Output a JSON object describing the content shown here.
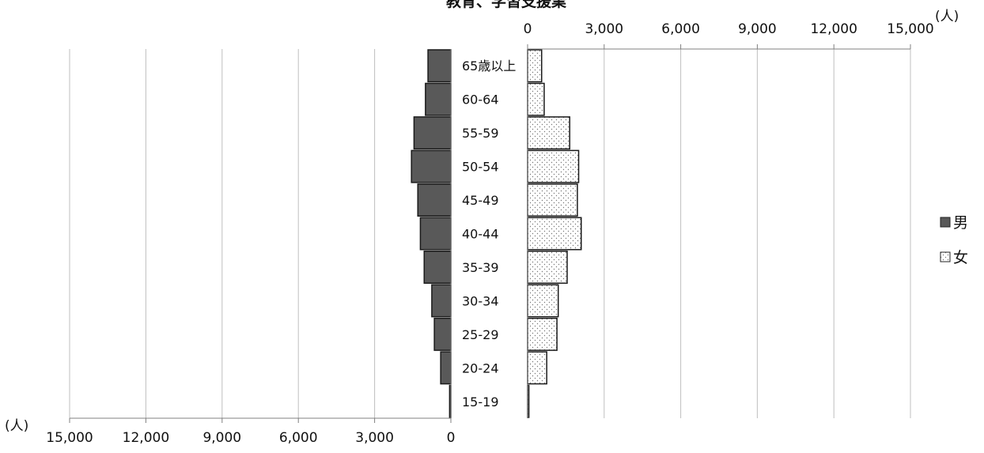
{
  "chart_data": {
    "type": "bar",
    "title": "教育、学習支援業",
    "unit_label": "(人)",
    "categories": [
      "65歳以上",
      "60-64",
      "55-59",
      "50-54",
      "45-49",
      "40-44",
      "35-39",
      "30-34",
      "25-29",
      "20-24",
      "15-19"
    ],
    "series": [
      {
        "name": "男",
        "color": "#595959",
        "values": [
          900,
          1000,
          1450,
          1550,
          1300,
          1200,
          1050,
          750,
          650,
          400,
          50
        ]
      },
      {
        "name": "女",
        "color": "#ffffff",
        "values": [
          550,
          650,
          1650,
          2000,
          1950,
          2100,
          1550,
          1200,
          1150,
          750,
          50
        ]
      }
    ],
    "left_axis": {
      "ticks": [
        "15,000",
        "12,000",
        "9,000",
        "6,000",
        "3,000",
        "0"
      ],
      "range": [
        0,
        15000
      ],
      "reversed": true
    },
    "right_axis": {
      "ticks": [
        "0",
        "3,000",
        "6,000",
        "9,000",
        "12,000",
        "15,000"
      ],
      "range": [
        0,
        15000
      ]
    },
    "grid": true,
    "legend_position": "right"
  }
}
